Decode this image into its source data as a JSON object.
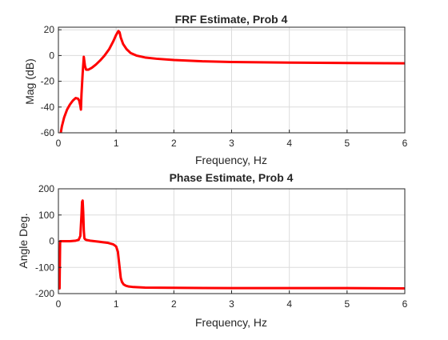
{
  "figure": {
    "background": "#ffffff"
  },
  "chart_data": [
    {
      "type": "line",
      "title": "FRF Estimate, Prob 4",
      "xlabel": "Frequency, Hz",
      "ylabel": "Mag (dB)",
      "xlim": [
        0,
        6
      ],
      "ylim": [
        -60,
        22
      ],
      "xticks": [
        0,
        1,
        2,
        3,
        4,
        5,
        6
      ],
      "yticks": [
        -60,
        -40,
        -20,
        0,
        20
      ],
      "grid": true,
      "color": "#ff0000",
      "series": [
        {
          "x": [
            0.03,
            0.06,
            0.1,
            0.15,
            0.2,
            0.25,
            0.3,
            0.34,
            0.36,
            0.38,
            0.39,
            0.4,
            0.42,
            0.44,
            0.46,
            0.48,
            0.52,
            0.58,
            0.65,
            0.72,
            0.8,
            0.88,
            0.95,
            1.0,
            1.04,
            1.06,
            1.08,
            1.12,
            1.18,
            1.25,
            1.35,
            1.5,
            1.7,
            2.0,
            2.5,
            3.0,
            4.0,
            5.0,
            6.0
          ],
          "y": [
            -63,
            -55,
            -48,
            -42,
            -38,
            -35,
            -33,
            -33.5,
            -35,
            -39,
            -42,
            -30,
            -14,
            -1,
            -8,
            -11,
            -11,
            -9.5,
            -7,
            -4,
            0,
            5,
            11,
            16,
            19,
            18,
            14,
            9,
            5,
            2,
            0,
            -1.5,
            -2.5,
            -3.5,
            -4.5,
            -5,
            -5.5,
            -5.8,
            -6
          ]
        }
      ]
    },
    {
      "type": "line",
      "title": "Phase Estimate, Prob 4",
      "xlabel": "Frequency, Hz",
      "ylabel": "Angle Deg.",
      "xlim": [
        0,
        6
      ],
      "ylim": [
        -200,
        200
      ],
      "xticks": [
        0,
        1,
        2,
        3,
        4,
        5,
        6
      ],
      "yticks": [
        -200,
        -100,
        0,
        100,
        200
      ],
      "grid": true,
      "color": "#ff0000",
      "series": [
        {
          "x": [
            0.02,
            0.03,
            0.04,
            0.1,
            0.2,
            0.3,
            0.35,
            0.38,
            0.4,
            0.41,
            0.42,
            0.43,
            0.44,
            0.45,
            0.46,
            0.48,
            0.55,
            0.7,
            0.85,
            0.95,
            1.0,
            1.03,
            1.06,
            1.08,
            1.1,
            1.13,
            1.17,
            1.22,
            1.3,
            1.5,
            2.0,
            3.0,
            4.0,
            5.0,
            6.0
          ],
          "y": [
            -180,
            0,
            0,
            0,
            0,
            2,
            5,
            20,
            100,
            150,
            155,
            110,
            40,
            12,
            8,
            5,
            2,
            -2,
            -6,
            -12,
            -20,
            -40,
            -100,
            -140,
            -155,
            -165,
            -170,
            -173,
            -175,
            -177,
            -178,
            -179,
            -179,
            -179,
            -180
          ]
        }
      ]
    }
  ]
}
